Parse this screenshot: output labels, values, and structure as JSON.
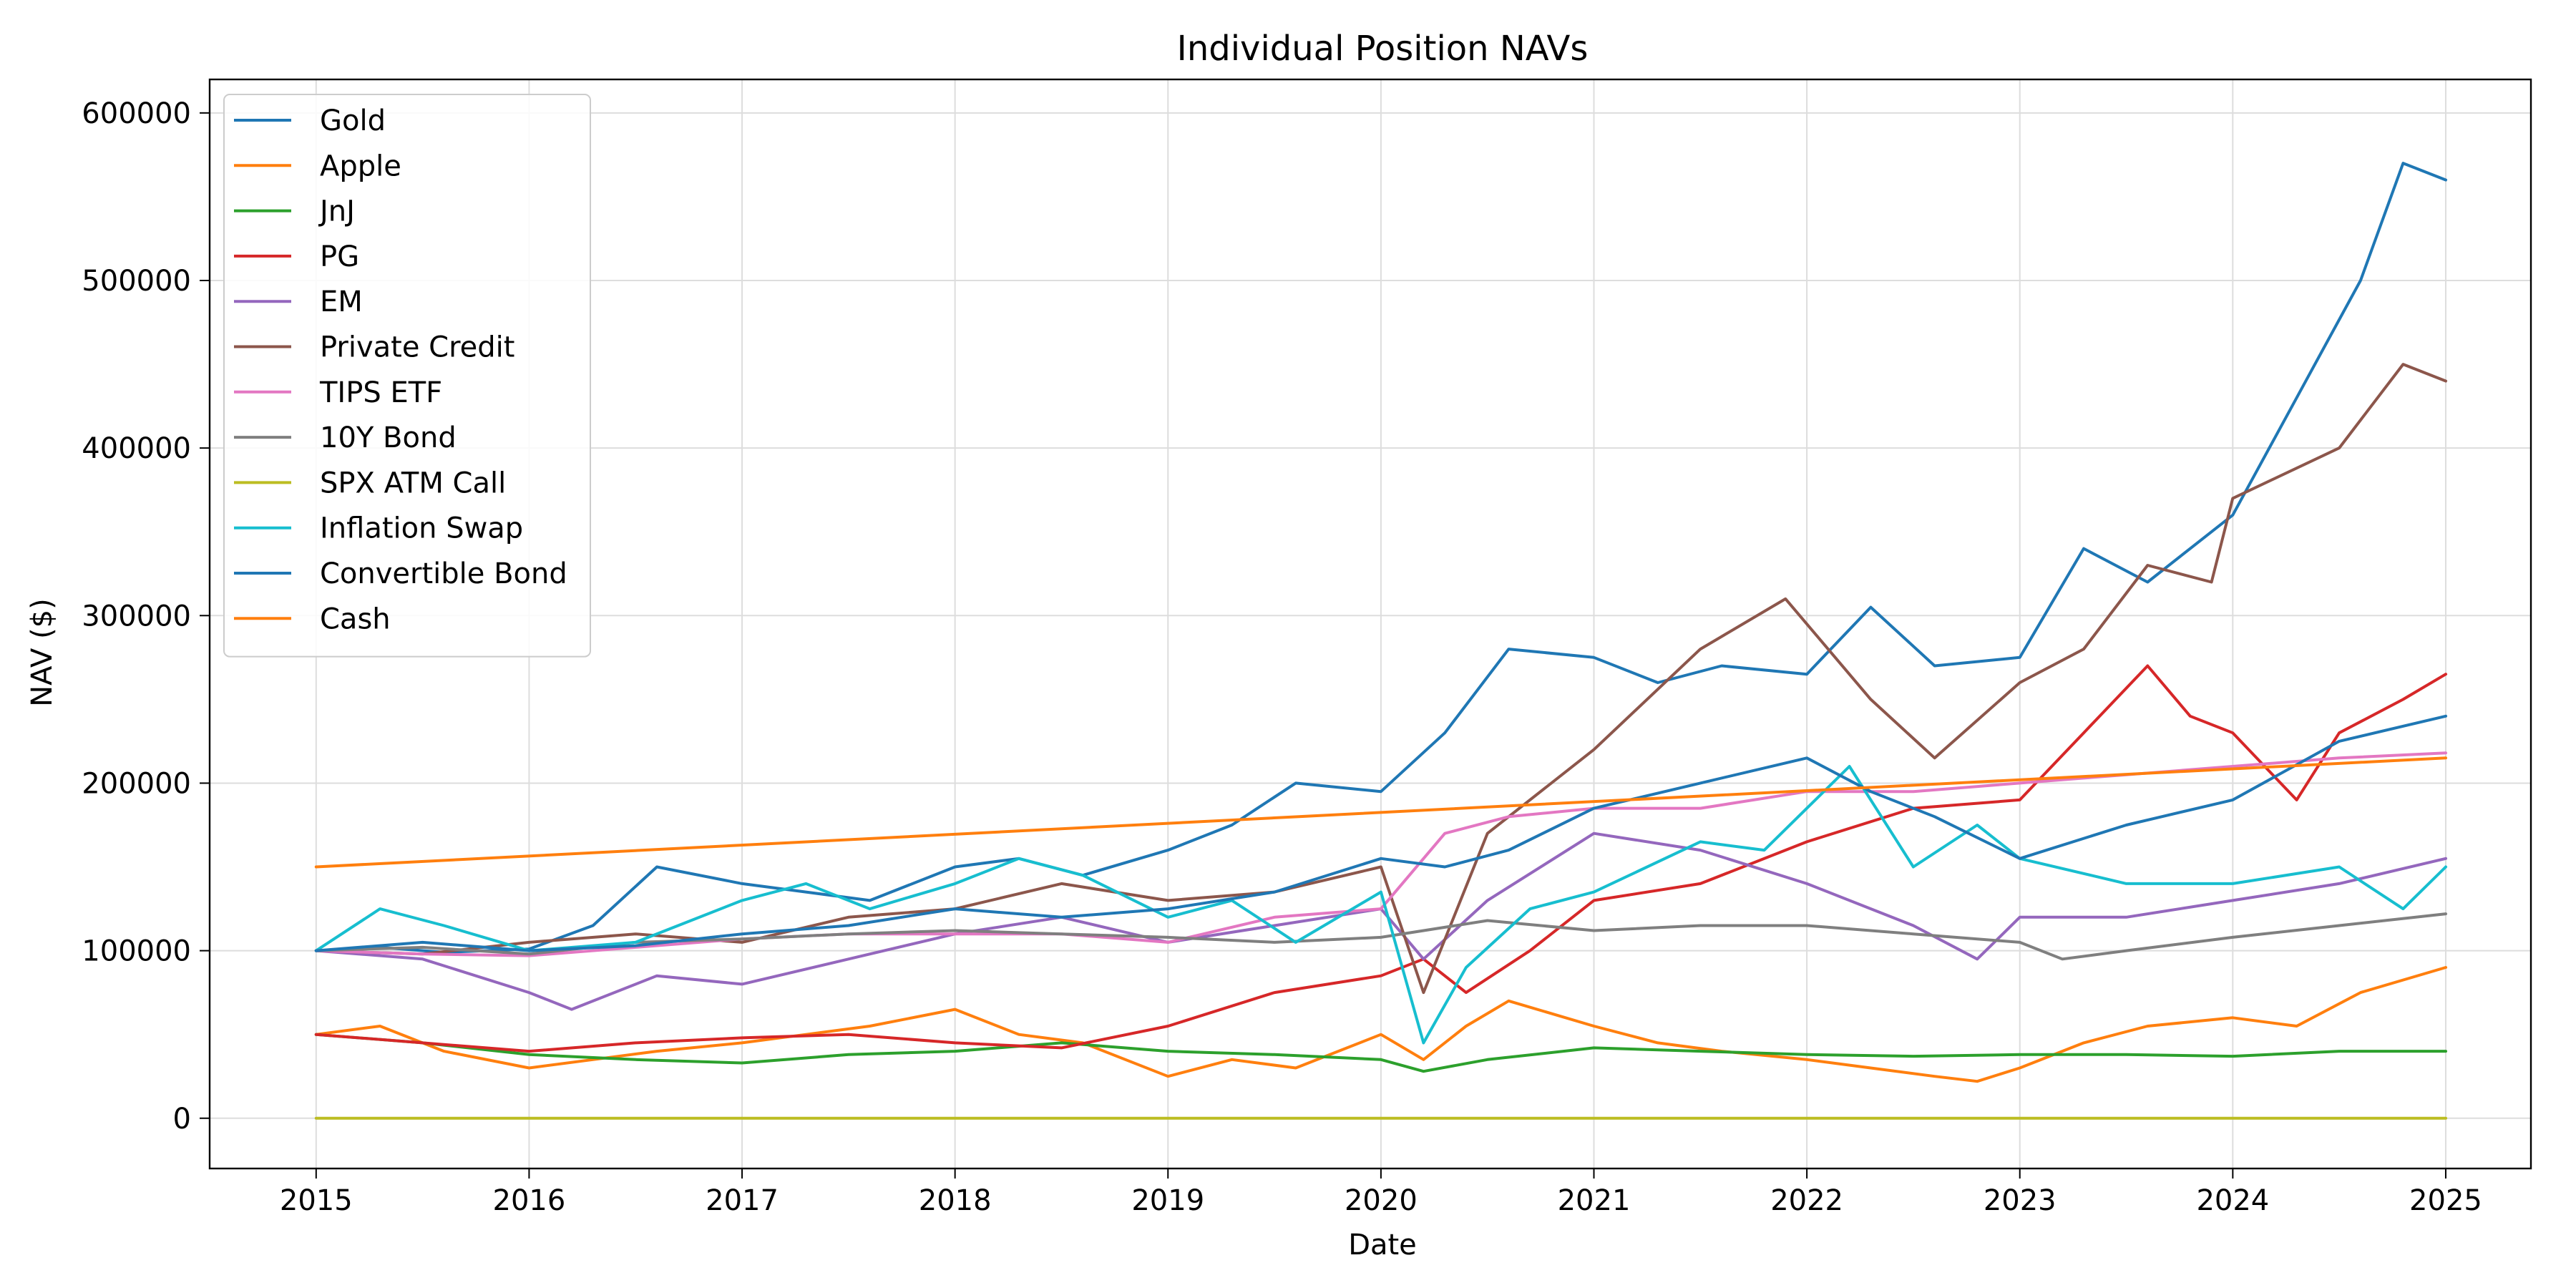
{
  "chart_data": {
    "type": "line",
    "title": "Individual Position NAVs",
    "xlabel": "Date",
    "ylabel": "NAV ($)",
    "xlim": [
      2014.5,
      2025.4
    ],
    "ylim": [
      -30000,
      620000
    ],
    "x_ticks": [
      2015,
      2016,
      2017,
      2018,
      2019,
      2020,
      2021,
      2022,
      2023,
      2024,
      2025
    ],
    "x_tick_labels": [
      "2015",
      "2016",
      "2017",
      "2018",
      "2019",
      "2020",
      "2021",
      "2022",
      "2023",
      "2024",
      "2025"
    ],
    "y_ticks": [
      0,
      100000,
      200000,
      300000,
      400000,
      500000,
      600000
    ],
    "y_tick_labels": [
      "0",
      "100000",
      "200000",
      "300000",
      "400000",
      "500000",
      "600000"
    ],
    "grid": true,
    "legend_position": "top-left",
    "series": [
      {
        "name": "Gold",
        "color": "#1f77b4",
        "x": [
          2015.0,
          2015.3,
          2015.6,
          2016.0,
          2016.3,
          2016.6,
          2017.0,
          2017.3,
          2017.6,
          2018.0,
          2018.3,
          2018.6,
          2019.0,
          2019.3,
          2019.6,
          2020.0,
          2020.3,
          2020.6,
          2021.0,
          2021.3,
          2021.6,
          2022.0,
          2022.3,
          2022.6,
          2023.0,
          2023.3,
          2023.6,
          2024.0,
          2024.3,
          2024.6,
          2024.8,
          2025.0
        ],
        "y": [
          100000,
          102000,
          99000,
          101000,
          115000,
          150000,
          140000,
          135000,
          130000,
          150000,
          155000,
          145000,
          160000,
          175000,
          200000,
          195000,
          230000,
          280000,
          275000,
          260000,
          270000,
          265000,
          305000,
          270000,
          275000,
          340000,
          320000,
          360000,
          430000,
          500000,
          570000,
          560000
        ]
      },
      {
        "name": "Apple",
        "color": "#ff7f0e",
        "x": [
          2015.0,
          2015.3,
          2015.6,
          2016.0,
          2016.3,
          2016.6,
          2017.0,
          2017.3,
          2017.6,
          2018.0,
          2018.3,
          2018.6,
          2019.0,
          2019.3,
          2019.6,
          2020.0,
          2020.2,
          2020.4,
          2020.6,
          2021.0,
          2021.3,
          2021.6,
          2022.0,
          2022.3,
          2022.6,
          2022.8,
          2023.0,
          2023.3,
          2023.6,
          2024.0,
          2024.3,
          2024.6,
          2025.0
        ],
        "y": [
          50000,
          55000,
          40000,
          30000,
          35000,
          40000,
          45000,
          50000,
          55000,
          65000,
          50000,
          45000,
          25000,
          35000,
          30000,
          50000,
          35000,
          55000,
          70000,
          55000,
          45000,
          40000,
          35000,
          30000,
          25000,
          22000,
          30000,
          45000,
          55000,
          60000,
          55000,
          75000,
          90000
        ]
      },
      {
        "name": "JnJ",
        "color": "#2ca02c",
        "x": [
          2015.0,
          2015.5,
          2016.0,
          2016.5,
          2017.0,
          2017.5,
          2018.0,
          2018.5,
          2019.0,
          2019.5,
          2020.0,
          2020.2,
          2020.5,
          2021.0,
          2021.5,
          2022.0,
          2022.5,
          2023.0,
          2023.5,
          2024.0,
          2024.5,
          2025.0
        ],
        "y": [
          50000,
          45000,
          38000,
          35000,
          33000,
          38000,
          40000,
          45000,
          40000,
          38000,
          35000,
          28000,
          35000,
          42000,
          40000,
          38000,
          37000,
          38000,
          38000,
          37000,
          40000,
          40000
        ]
      },
      {
        "name": "PG",
        "color": "#d62728",
        "x": [
          2015.0,
          2015.5,
          2016.0,
          2016.5,
          2017.0,
          2017.5,
          2018.0,
          2018.5,
          2019.0,
          2019.5,
          2020.0,
          2020.2,
          2020.4,
          2020.7,
          2021.0,
          2021.5,
          2022.0,
          2022.5,
          2023.0,
          2023.3,
          2023.6,
          2023.8,
          2024.0,
          2024.3,
          2024.5,
          2024.8,
          2025.0
        ],
        "y": [
          50000,
          45000,
          40000,
          45000,
          48000,
          50000,
          45000,
          42000,
          55000,
          75000,
          85000,
          95000,
          75000,
          100000,
          130000,
          140000,
          165000,
          185000,
          190000,
          230000,
          270000,
          240000,
          230000,
          190000,
          230000,
          250000,
          265000
        ]
      },
      {
        "name": "EM",
        "color": "#9467bd",
        "x": [
          2015.0,
          2015.5,
          2016.0,
          2016.2,
          2016.6,
          2017.0,
          2017.5,
          2018.0,
          2018.5,
          2019.0,
          2019.5,
          2020.0,
          2020.2,
          2020.5,
          2021.0,
          2021.5,
          2022.0,
          2022.5,
          2022.8,
          2023.0,
          2023.5,
          2024.0,
          2024.5,
          2025.0
        ],
        "y": [
          100000,
          95000,
          75000,
          65000,
          85000,
          80000,
          95000,
          110000,
          120000,
          105000,
          115000,
          125000,
          95000,
          130000,
          170000,
          160000,
          140000,
          115000,
          95000,
          120000,
          120000,
          130000,
          140000,
          155000
        ]
      },
      {
        "name": "Private Credit",
        "color": "#8c564b",
        "x": [
          2015.0,
          2015.5,
          2016.0,
          2016.5,
          2017.0,
          2017.5,
          2018.0,
          2018.5,
          2019.0,
          2019.5,
          2020.0,
          2020.2,
          2020.5,
          2021.0,
          2021.5,
          2021.9,
          2022.3,
          2022.6,
          2023.0,
          2023.3,
          2023.6,
          2023.9,
          2024.0,
          2024.5,
          2024.8,
          2025.0
        ],
        "y": [
          100000,
          98000,
          105000,
          110000,
          105000,
          120000,
          125000,
          140000,
          130000,
          135000,
          150000,
          75000,
          170000,
          220000,
          280000,
          310000,
          250000,
          215000,
          260000,
          280000,
          330000,
          320000,
          370000,
          400000,
          450000,
          440000
        ]
      },
      {
        "name": "TIPS ETF",
        "color": "#e377c2",
        "x": [
          2015.0,
          2015.5,
          2016.0,
          2016.5,
          2017.0,
          2017.5,
          2018.0,
          2018.5,
          2019.0,
          2019.5,
          2020.0,
          2020.3,
          2020.6,
          2021.0,
          2021.5,
          2022.0,
          2022.5,
          2023.0,
          2023.5,
          2024.0,
          2024.5,
          2025.0
        ],
        "y": [
          100000,
          98000,
          97000,
          102000,
          107000,
          110000,
          110000,
          110000,
          105000,
          120000,
          125000,
          170000,
          180000,
          185000,
          185000,
          195000,
          195000,
          200000,
          205000,
          210000,
          215000,
          218000
        ]
      },
      {
        "name": "10Y Bond",
        "color": "#7f7f7f",
        "x": [
          2015.0,
          2015.5,
          2016.0,
          2016.5,
          2017.0,
          2017.5,
          2018.0,
          2018.5,
          2019.0,
          2019.5,
          2020.0,
          2020.5,
          2021.0,
          2021.5,
          2022.0,
          2022.5,
          2023.0,
          2023.2,
          2023.5,
          2024.0,
          2024.5,
          2025.0
        ],
        "y": [
          100000,
          102000,
          98000,
          105000,
          107000,
          110000,
          112000,
          110000,
          108000,
          105000,
          108000,
          118000,
          112000,
          115000,
          115000,
          110000,
          105000,
          95000,
          100000,
          108000,
          115000,
          122000
        ]
      },
      {
        "name": "SPX ATM Call",
        "color": "#bcbd22",
        "x": [
          2015.0,
          2025.0
        ],
        "y": [
          0,
          0
        ]
      },
      {
        "name": "Inflation Swap",
        "color": "#17becf",
        "x": [
          2015.0,
          2015.3,
          2015.6,
          2016.0,
          2016.5,
          2017.0,
          2017.3,
          2017.6,
          2018.0,
          2018.3,
          2018.6,
          2019.0,
          2019.3,
          2019.6,
          2020.0,
          2020.2,
          2020.4,
          2020.7,
          2021.0,
          2021.5,
          2021.8,
          2022.2,
          2022.5,
          2022.8,
          2023.0,
          2023.5,
          2024.0,
          2024.5,
          2024.8,
          2025.0
        ],
        "y": [
          100000,
          125000,
          115000,
          100000,
          105000,
          130000,
          140000,
          125000,
          140000,
          155000,
          145000,
          120000,
          130000,
          105000,
          135000,
          45000,
          90000,
          125000,
          135000,
          165000,
          160000,
          210000,
          150000,
          175000,
          155000,
          140000,
          140000,
          150000,
          125000,
          150000
        ]
      },
      {
        "name": "Convertible Bond",
        "color": "#1f77b4",
        "x": [
          2015.0,
          2015.5,
          2016.0,
          2016.5,
          2017.0,
          2017.5,
          2018.0,
          2018.5,
          2019.0,
          2019.5,
          2020.0,
          2020.3,
          2020.6,
          2021.0,
          2021.5,
          2022.0,
          2022.3,
          2022.6,
          2023.0,
          2023.5,
          2024.0,
          2024.5,
          2025.0
        ],
        "y": [
          100000,
          105000,
          100000,
          103000,
          110000,
          115000,
          125000,
          120000,
          125000,
          135000,
          155000,
          150000,
          160000,
          185000,
          200000,
          215000,
          195000,
          180000,
          155000,
          175000,
          190000,
          225000,
          240000
        ]
      },
      {
        "name": "Cash",
        "color": "#ff7f0e",
        "x": [
          2015.0,
          2025.0
        ],
        "y": [
          150000,
          215000
        ]
      }
    ]
  }
}
